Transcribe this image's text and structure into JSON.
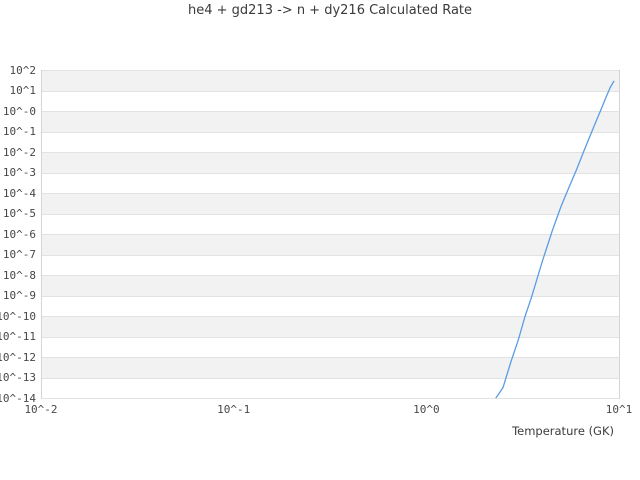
{
  "chart_data": {
    "type": "line",
    "title": "he4 + gd213 -> n + dy216 Calculated Rate",
    "xlabel": "Temperature (GK)",
    "ylabel": "",
    "x_scale": "log",
    "y_scale": "log",
    "xlim": [
      0.01,
      10
    ],
    "ylim": [
      1e-14,
      100
    ],
    "grid": "horizontal-decade-stripes",
    "legend": "none",
    "x_ticks": [
      {
        "exp": -2,
        "label": "10^-2"
      },
      {
        "exp": -1,
        "label": "10^-1"
      },
      {
        "exp": 0,
        "label": "10^0"
      },
      {
        "exp": 1,
        "label": "10^1"
      }
    ],
    "y_ticks": [
      {
        "exp": 2,
        "label": "10^2"
      },
      {
        "exp": 1,
        "label": "10^1"
      },
      {
        "exp": 0,
        "label": "10^-0"
      },
      {
        "exp": -1,
        "label": "10^-1"
      },
      {
        "exp": -2,
        "label": "10^-2"
      },
      {
        "exp": -3,
        "label": "10^-3"
      },
      {
        "exp": -4,
        "label": "10^-4"
      },
      {
        "exp": -5,
        "label": "10^-5"
      },
      {
        "exp": -6,
        "label": "10^-6"
      },
      {
        "exp": -7,
        "label": "10^-7"
      },
      {
        "exp": -8,
        "label": "10^-8"
      },
      {
        "exp": -9,
        "label": "10^-9"
      },
      {
        "exp": -10,
        "label": "10^-10"
      },
      {
        "exp": -11,
        "label": "10^-11"
      },
      {
        "exp": -12,
        "label": "10^-12"
      },
      {
        "exp": -13,
        "label": "10^-13"
      },
      {
        "exp": -14,
        "label": "10^-14"
      }
    ],
    "series": [
      {
        "name": "calculated-rate",
        "color": "#5b9ce3",
        "points": [
          [
            2.28,
            9e-15
          ],
          [
            2.5,
            3.2e-14
          ],
          [
            2.75,
            6e-13
          ],
          [
            3.0,
            6.8e-12
          ],
          [
            3.25,
            9.5e-11
          ],
          [
            3.5,
            7.4e-10
          ],
          [
            4.0,
            4.6e-08
          ],
          [
            4.5,
            1.4e-06
          ],
          [
            5.0,
            2.2e-05
          ],
          [
            5.5,
            0.00019
          ],
          [
            6.0,
            0.0013
          ],
          [
            6.5,
            0.0087
          ],
          [
            7.0,
            0.048
          ],
          [
            7.5,
            0.23
          ],
          [
            8.0,
            0.98
          ],
          [
            8.5,
            4.0
          ],
          [
            9.0,
            14
          ],
          [
            9.4,
            28
          ]
        ]
      }
    ],
    "colors": {
      "background": "#ffffff",
      "stripe": "#f2f2f2",
      "gridline": "#e2e2e2",
      "spine": "#d5d5d5",
      "text": "#3c3c3c",
      "line": "#5b9ce3"
    }
  }
}
